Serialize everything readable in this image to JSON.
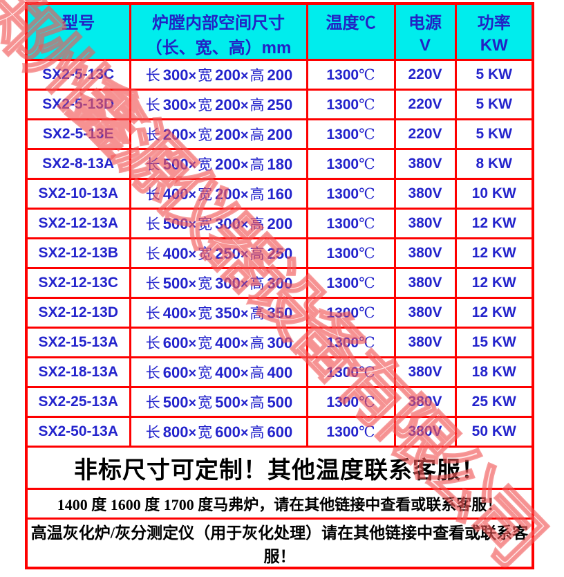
{
  "table": {
    "header": {
      "col_model": {
        "line1": "型号",
        "line2": ""
      },
      "col_dims": {
        "line1": "炉膛内部空间尺寸",
        "line2": "（长、宽、高）mm"
      },
      "col_temp": {
        "line1": "温度℃",
        "line2": ""
      },
      "col_volt": {
        "line1": "电源",
        "line2": "V"
      },
      "col_power": {
        "line1": "功率",
        "line2": "KW"
      }
    },
    "labels": {
      "length": "长",
      "width": "宽",
      "height": "高",
      "times": "×",
      "celsius": "℃"
    },
    "rows": [
      {
        "model": "SX2-5-13C",
        "dims": [
          "300",
          "200",
          "200"
        ],
        "temp": "1300",
        "volt": "220V",
        "power": "5 KW"
      },
      {
        "model": "SX2-5-13D",
        "dims": [
          "300",
          "200",
          "250"
        ],
        "temp": "1300",
        "volt": "220V",
        "power": "5 KW"
      },
      {
        "model": "SX2-5-13E",
        "dims": [
          "200",
          "200",
          "200"
        ],
        "temp": "1300",
        "volt": "220V",
        "power": "5 KW"
      },
      {
        "model": "SX2-8-13A",
        "dims": [
          "500",
          "200",
          "180"
        ],
        "temp": "1300",
        "volt": "380V",
        "power": "8 KW"
      },
      {
        "model": "SX2-10-13A",
        "dims": [
          "400",
          "200",
          "160"
        ],
        "temp": "1300",
        "volt": "380V",
        "power": "10 KW"
      },
      {
        "model": "SX2-12-13A",
        "dims": [
          "500",
          "300",
          "200"
        ],
        "temp": "1300",
        "volt": "380V",
        "power": "12 KW"
      },
      {
        "model": "SX2-12-13B",
        "dims": [
          "400",
          "250",
          "250"
        ],
        "temp": "1300",
        "volt": "380V",
        "power": "12 KW"
      },
      {
        "model": "SX2-12-13C",
        "dims": [
          "500",
          "300",
          "300"
        ],
        "temp": "1300",
        "volt": "380V",
        "power": "12 KW"
      },
      {
        "model": "SX2-12-13D",
        "dims": [
          "400",
          "350",
          "350"
        ],
        "temp": "1300",
        "volt": "380V",
        "power": "12 KW"
      },
      {
        "model": "SX2-15-13A",
        "dims": [
          "600",
          "400",
          "300"
        ],
        "temp": "1300",
        "volt": "380V",
        "power": "15 KW"
      },
      {
        "model": "SX2-18-13A",
        "dims": [
          "600",
          "400",
          "400"
        ],
        "temp": "1300",
        "volt": "380V",
        "power": "18 KW"
      },
      {
        "model": "SX2-25-13A",
        "dims": [
          "500",
          "500",
          "500"
        ],
        "temp": "1300",
        "volt": "380V",
        "power": "25 KW"
      },
      {
        "model": "SX2-50-13A",
        "dims": [
          "800",
          "600",
          "600"
        ],
        "temp": "1300",
        "volt": "380V",
        "power": "50 KW"
      }
    ],
    "footers": [
      {
        "text": "非标尺寸可定制！其他温度联系客服！"
      },
      {
        "text": "1400 度 1600 度 1700 度马弗炉，请在其他链接中查看或联系客服！"
      },
      {
        "text": "高温灰化炉/灰分测定仪（用于灰化处理）请在其他链接中查看或联系客服！"
      }
    ]
  },
  "watermark": {
    "text": "郑州鑫源仪器设备有限公司"
  },
  "colors": {
    "border_red": "#fe0000",
    "header_bg": "#00eded",
    "header_text": "#2222c4",
    "data_text": "#2323cc",
    "footer_text": "#000000",
    "watermark_red": "#f05555"
  }
}
